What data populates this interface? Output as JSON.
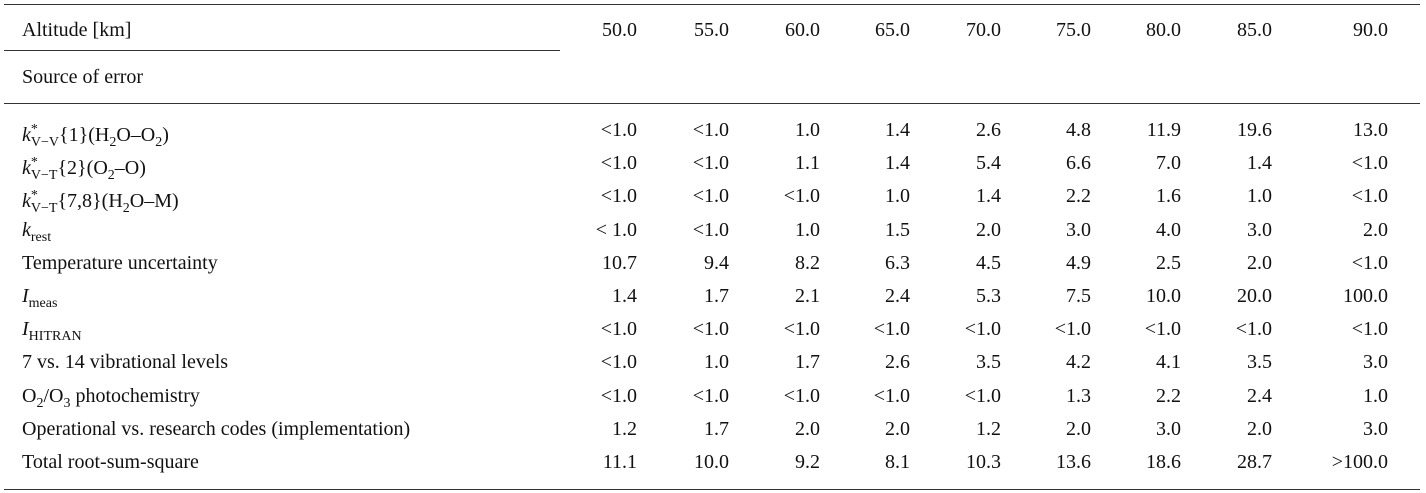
{
  "header": {
    "label": "Altitude [km]",
    "altitudes": [
      "50.0",
      "55.0",
      "60.0",
      "65.0",
      "70.0",
      "75.0",
      "80.0",
      "85.0",
      "90.0"
    ]
  },
  "subheader": "Source of error",
  "rows": [
    {
      "label": [
        {
          "text": "k",
          "style": "i"
        },
        {
          "text": "*",
          "style": "sup"
        },
        {
          "text": "V−V",
          "style": "sub"
        },
        {
          "text": "{1}(H",
          "style": "n"
        },
        {
          "text": "2",
          "style": "sub"
        },
        {
          "text": "O–O",
          "style": "n"
        },
        {
          "text": "2",
          "style": "sub"
        },
        {
          "text": ")",
          "style": "n"
        }
      ],
      "cells": [
        "<1.0",
        "<1.0",
        "1.0",
        "1.4",
        "2.6",
        "4.8",
        "11.9",
        "19.6",
        "13.0"
      ]
    },
    {
      "label": [
        {
          "text": "k",
          "style": "i"
        },
        {
          "text": "*",
          "style": "sup"
        },
        {
          "text": "V−T",
          "style": "sub"
        },
        {
          "text": "{2}(O",
          "style": "n"
        },
        {
          "text": "2",
          "style": "sub"
        },
        {
          "text": "–O)",
          "style": "n"
        }
      ],
      "cells": [
        "<1.0",
        "<1.0",
        "1.1",
        "1.4",
        "5.4",
        "6.6",
        "7.0",
        "1.4",
        "<1.0"
      ]
    },
    {
      "label": [
        {
          "text": "k",
          "style": "i"
        },
        {
          "text": "*",
          "style": "sup"
        },
        {
          "text": "V−T",
          "style": "sub"
        },
        {
          "text": "{7,8}(H",
          "style": "n"
        },
        {
          "text": "2",
          "style": "sub"
        },
        {
          "text": "O–M)",
          "style": "n"
        }
      ],
      "cells": [
        "<1.0",
        "<1.0",
        "<1.0",
        "1.0",
        "1.4",
        "2.2",
        "1.6",
        "1.0",
        "<1.0"
      ]
    },
    {
      "label": [
        {
          "text": "k",
          "style": "i"
        },
        {
          "text": "rest",
          "style": "sub"
        }
      ],
      "cells": [
        "< 1.0",
        "<1.0",
        "1.0",
        "1.5",
        "2.0",
        "3.0",
        "4.0",
        "3.0",
        "2.0"
      ]
    },
    {
      "label": [
        {
          "text": "Temperature uncertainty",
          "style": "n"
        }
      ],
      "cells": [
        "10.7",
        "9.4",
        "8.2",
        "6.3",
        "4.5",
        "4.9",
        "2.5",
        "2.0",
        "<1.0"
      ]
    },
    {
      "label": [
        {
          "text": "I",
          "style": "i"
        },
        {
          "text": "meas",
          "style": "sub"
        }
      ],
      "cells": [
        "1.4",
        "1.7",
        "2.1",
        "2.4",
        "5.3",
        "7.5",
        "10.0",
        "20.0",
        "100.0"
      ]
    },
    {
      "label": [
        {
          "text": "I",
          "style": "i"
        },
        {
          "text": "HITRAN",
          "style": "sub"
        }
      ],
      "cells": [
        "<1.0",
        "<1.0",
        "<1.0",
        "<1.0",
        "<1.0",
        "<1.0",
        "<1.0",
        "<1.0",
        "<1.0"
      ]
    },
    {
      "label": [
        {
          "text": "7 vs. 14 vibrational levels",
          "style": "n"
        }
      ],
      "cells": [
        "<1.0",
        "1.0",
        "1.7",
        "2.6",
        "3.5",
        "4.2",
        "4.1",
        "3.5",
        "3.0"
      ]
    },
    {
      "label": [
        {
          "text": "O",
          "style": "n"
        },
        {
          "text": "2",
          "style": "sub"
        },
        {
          "text": "/O",
          "style": "n"
        },
        {
          "text": "3",
          "style": "sub"
        },
        {
          "text": " photochemistry",
          "style": "n"
        }
      ],
      "cells": [
        "<1.0",
        "<1.0",
        "<1.0",
        "<1.0",
        "<1.0",
        "1.3",
        "2.2",
        "2.4",
        "1.0"
      ]
    },
    {
      "label": [
        {
          "text": "Operational vs. research codes (implementation)",
          "style": "n"
        }
      ],
      "cells": [
        "1.2",
        "1.7",
        "2.0",
        "2.0",
        "1.2",
        "2.0",
        "3.0",
        "2.0",
        "3.0"
      ]
    },
    {
      "label": [
        {
          "text": "Total root-sum-square",
          "style": "n"
        }
      ],
      "cells": [
        "11.1",
        "10.0",
        "9.2",
        "8.1",
        "10.3",
        "13.6",
        "18.6",
        "28.7",
        ">100.0"
      ]
    }
  ]
}
